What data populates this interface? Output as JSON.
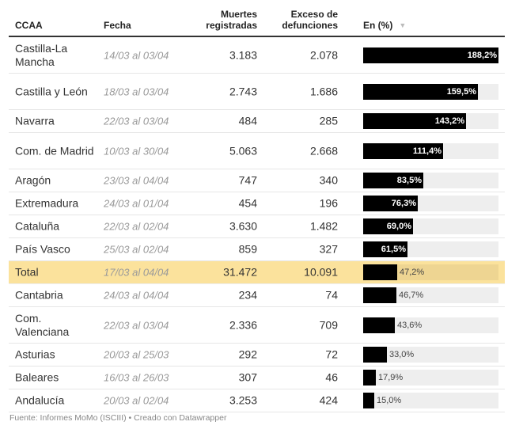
{
  "header": {
    "ccaa": "CCAA",
    "fecha": "Fecha",
    "muertes_line1": "Muertes",
    "muertes_line2": "registradas",
    "exceso_line1": "Exceso de",
    "exceso_line2": "defunciones",
    "pct": "En (%)",
    "sort_icon": "▼"
  },
  "footer": "Fuente: Informes MoMo (ISCIII) • Creado con Datawrapper",
  "colors": {
    "bar": "#000000",
    "track": "#eeeeee",
    "total_highlight": "#fbe29c"
  },
  "chart_data": {
    "type": "table",
    "title": "",
    "columns": [
      "CCAA",
      "Fecha",
      "Muertes registradas",
      "Exceso de defunciones",
      "En (%)"
    ],
    "bar_column": "En (%)",
    "bar_max": 188.2,
    "rows": [
      {
        "ccaa": "Castilla-La Mancha",
        "fecha": "14/03 al 03/04",
        "muertes": "3.183",
        "exceso": "2.078",
        "pct": 188.2,
        "pct_label": "188,2%",
        "total": false
      },
      {
        "ccaa": "Castilla y León",
        "fecha": "18/03 al 03/04",
        "muertes": "2.743",
        "exceso": "1.686",
        "pct": 159.5,
        "pct_label": "159,5%",
        "total": false
      },
      {
        "ccaa": "Navarra",
        "fecha": "22/03 al 03/04",
        "muertes": "484",
        "exceso": "285",
        "pct": 143.2,
        "pct_label": "143,2%",
        "total": false
      },
      {
        "ccaa": "Com. de Madrid",
        "fecha": "10/03 al 30/04",
        "muertes": "5.063",
        "exceso": "2.668",
        "pct": 111.4,
        "pct_label": "111,4%",
        "total": false
      },
      {
        "ccaa": "Aragón",
        "fecha": "23/03 al 04/04",
        "muertes": "747",
        "exceso": "340",
        "pct": 83.5,
        "pct_label": "83,5%",
        "total": false
      },
      {
        "ccaa": "Extremadura",
        "fecha": "24/03 al 01/04",
        "muertes": "454",
        "exceso": "196",
        "pct": 76.3,
        "pct_label": "76,3%",
        "total": false
      },
      {
        "ccaa": "Cataluña",
        "fecha": "22/03 al 02/04",
        "muertes": "3.630",
        "exceso": "1.482",
        "pct": 69.0,
        "pct_label": "69,0%",
        "total": false
      },
      {
        "ccaa": "País Vasco",
        "fecha": "25/03 al 02/04",
        "muertes": "859",
        "exceso": "327",
        "pct": 61.5,
        "pct_label": "61,5%",
        "total": false
      },
      {
        "ccaa": "Total",
        "fecha": "17/03 al 04/04",
        "muertes": "31.472",
        "exceso": "10.091",
        "pct": 47.2,
        "pct_label": "47,2%",
        "total": true
      },
      {
        "ccaa": "Cantabria",
        "fecha": "24/03 al 04/04",
        "muertes": "234",
        "exceso": "74",
        "pct": 46.7,
        "pct_label": "46,7%",
        "total": false
      },
      {
        "ccaa": "Com. Valenciana",
        "fecha": "22/03 al 03/04",
        "muertes": "2.336",
        "exceso": "709",
        "pct": 43.6,
        "pct_label": "43,6%",
        "total": false
      },
      {
        "ccaa": "Asturias",
        "fecha": "20/03 al 25/03",
        "muertes": "292",
        "exceso": "72",
        "pct": 33.0,
        "pct_label": "33,0%",
        "total": false
      },
      {
        "ccaa": "Baleares",
        "fecha": "16/03 al 26/03",
        "muertes": "307",
        "exceso": "46",
        "pct": 17.9,
        "pct_label": "17,9%",
        "total": false
      },
      {
        "ccaa": "Andalucía",
        "fecha": "20/03 al 02/04",
        "muertes": "3.253",
        "exceso": "424",
        "pct": 15.0,
        "pct_label": "15,0%",
        "total": false
      }
    ]
  }
}
